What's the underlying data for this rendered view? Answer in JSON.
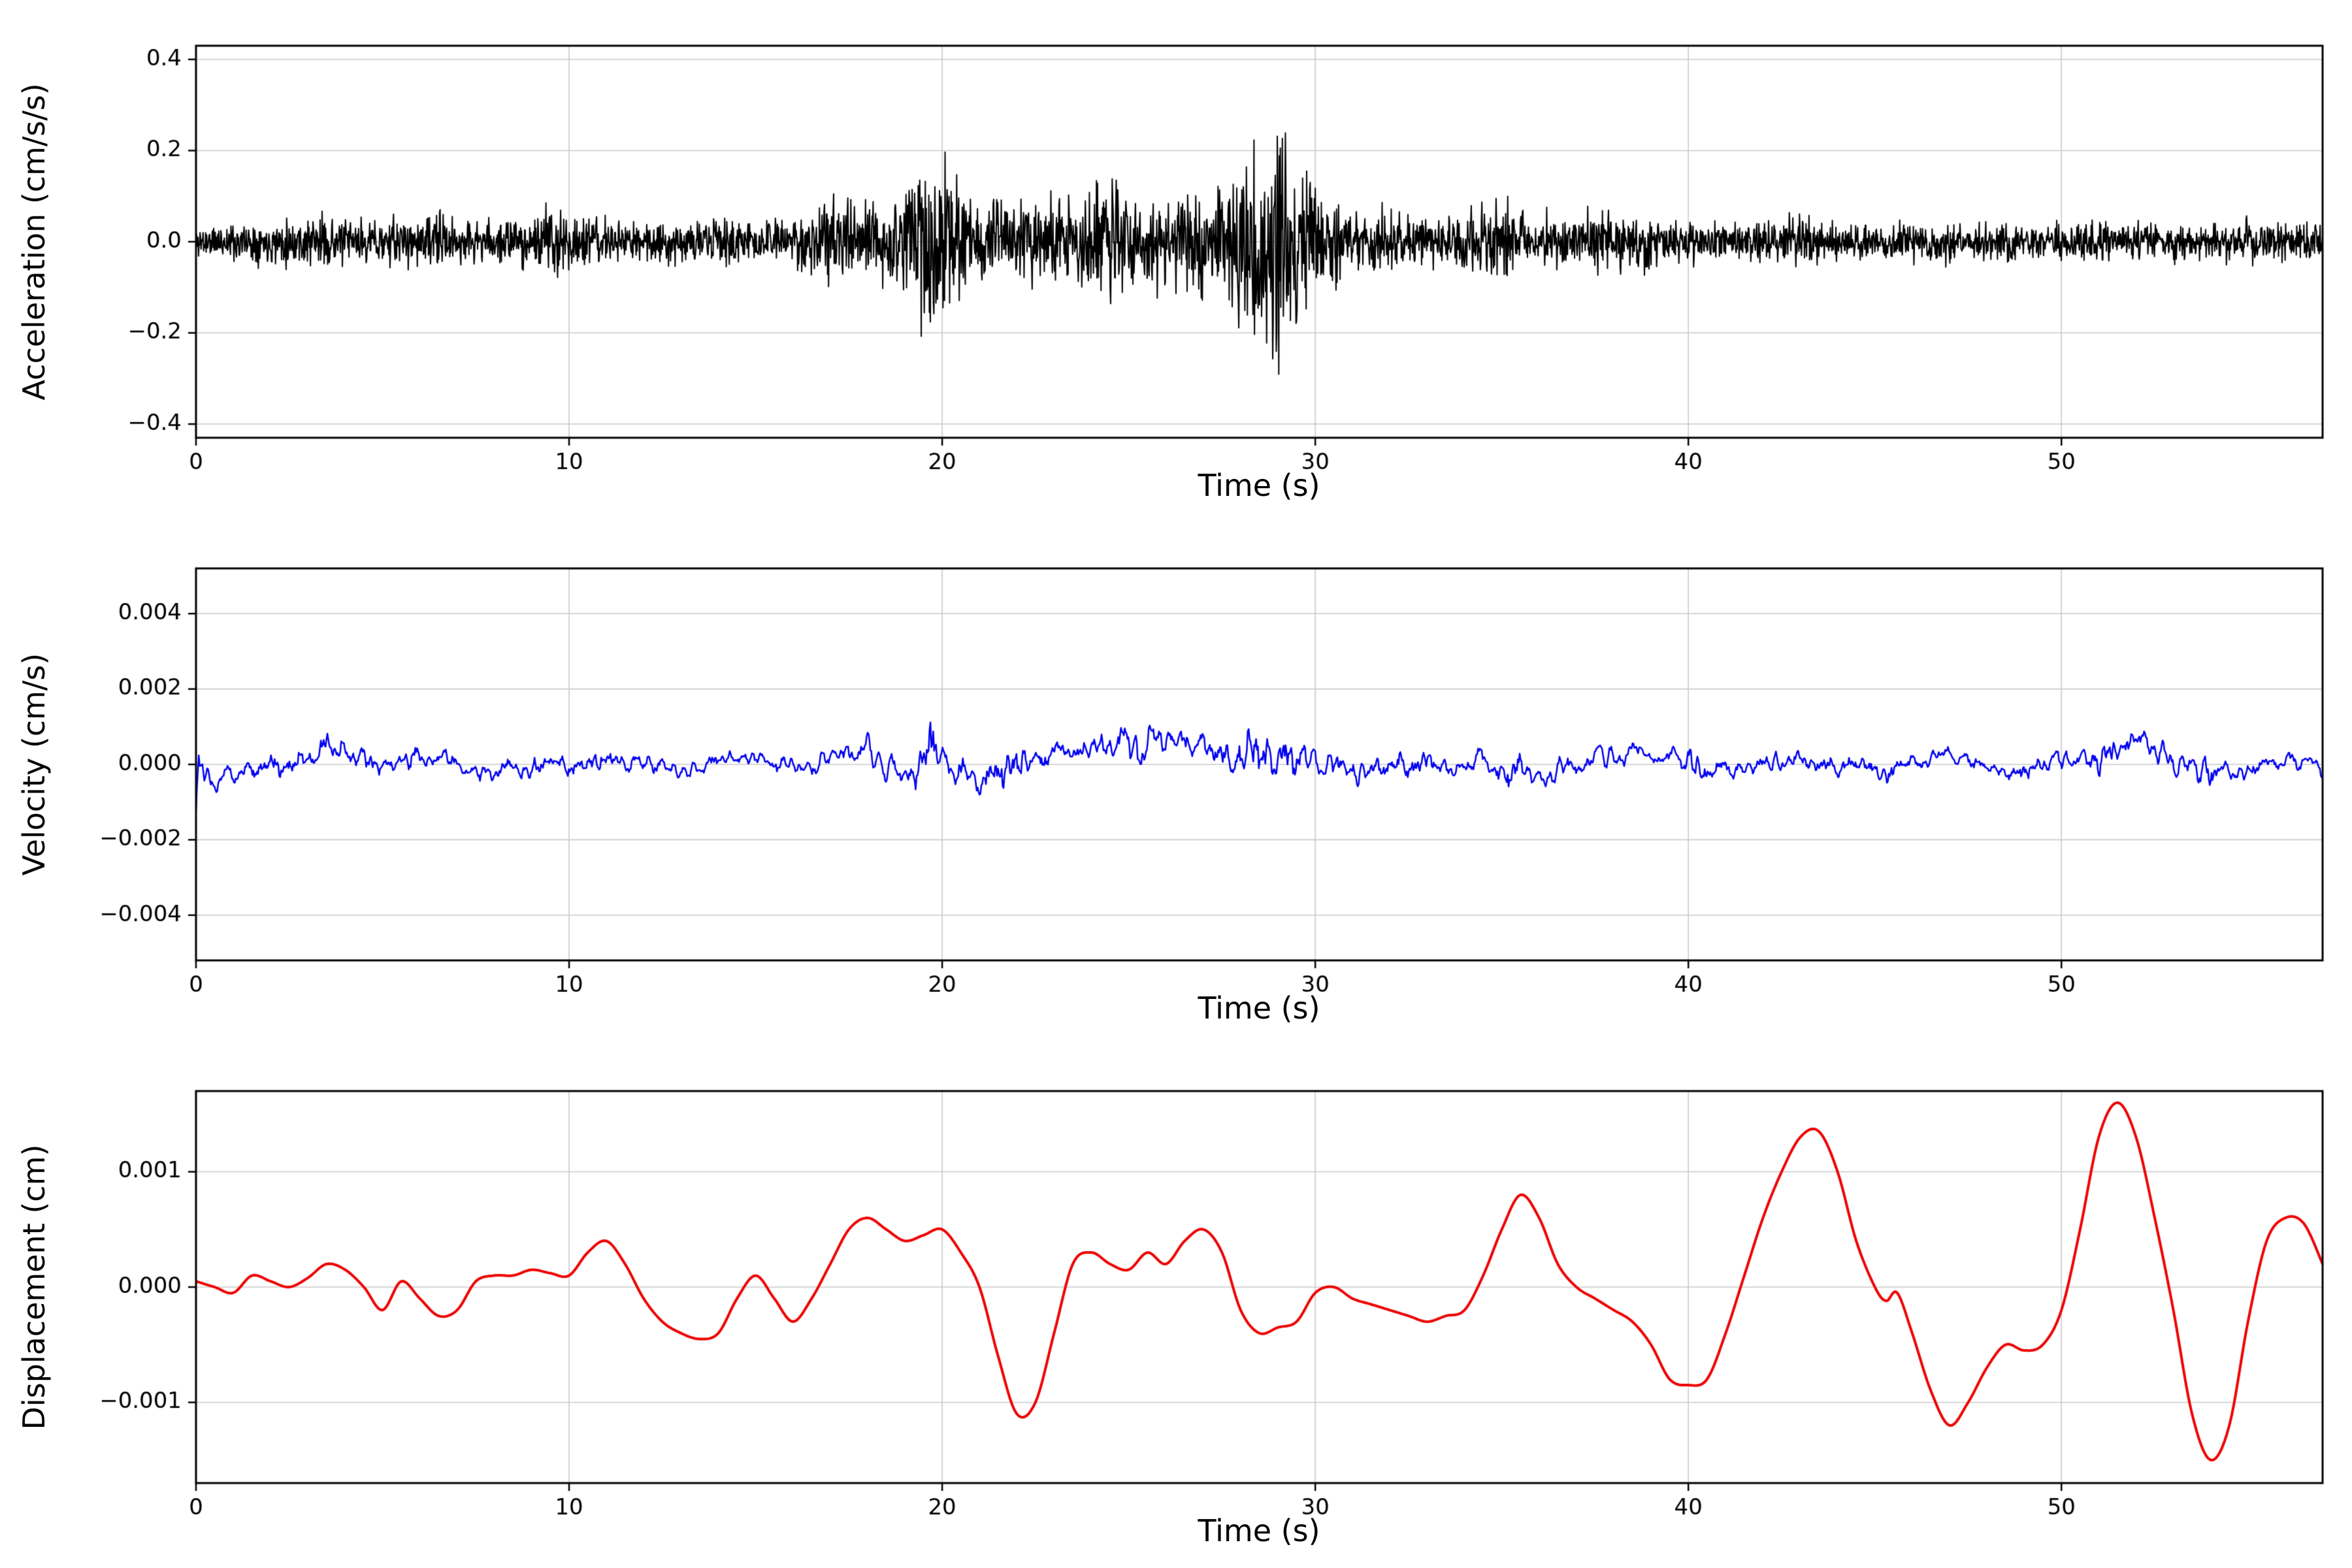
{
  "chart_data": [
    {
      "id": "acceleration",
      "type": "line",
      "title": "",
      "xlabel": "Time (s)",
      "ylabel": "Acceleration (cm/s/s)",
      "color": "#000000",
      "line_width": 2,
      "smooth_curve": false,
      "grid": true,
      "xlim": [
        0,
        57
      ],
      "ylim": [
        -0.43,
        0.43
      ],
      "xticks": [
        0,
        10,
        20,
        30,
        40,
        50
      ],
      "xtick_labels": [
        "0",
        "10",
        "20",
        "30",
        "40",
        "50"
      ],
      "yticks": [
        -0.4,
        -0.2,
        0.0,
        0.2,
        0.4
      ],
      "ytick_labels": [
        "−0.4",
        "−0.2",
        "0.0",
        "0.2",
        "0.4"
      ],
      "signal": {
        "kind": "noise",
        "seed": 11,
        "n": 4200,
        "smooth": 1,
        "slow_window": 1,
        "slow_mix": 0,
        "envelope": [
          [
            0,
            0.05
          ],
          [
            2,
            0.06
          ],
          [
            3,
            0.08
          ],
          [
            4,
            0.06
          ],
          [
            6,
            0.07
          ],
          [
            6.5,
            0.09
          ],
          [
            7.5,
            0.06
          ],
          [
            9,
            0.07
          ],
          [
            9.6,
            0.12
          ],
          [
            10.2,
            0.07
          ],
          [
            12,
            0.06
          ],
          [
            14,
            0.07
          ],
          [
            16,
            0.07
          ],
          [
            16.8,
            0.12
          ],
          [
            18,
            0.13
          ],
          [
            18.8,
            0.12
          ],
          [
            19.3,
            0.2
          ],
          [
            19.6,
            0.28
          ],
          [
            20.1,
            0.25
          ],
          [
            20.6,
            0.12
          ],
          [
            21.5,
            0.13
          ],
          [
            22.5,
            0.14
          ],
          [
            23.5,
            0.12
          ],
          [
            24.8,
            0.2
          ],
          [
            25.3,
            0.13
          ],
          [
            26.5,
            0.13
          ],
          [
            27.6,
            0.2
          ],
          [
            28.9,
            0.38
          ],
          [
            29.6,
            0.22
          ],
          [
            30.5,
            0.12
          ],
          [
            32,
            0.09
          ],
          [
            33.5,
            0.07
          ],
          [
            34.8,
            0.13
          ],
          [
            35.5,
            0.1
          ],
          [
            36.5,
            0.08
          ],
          [
            38,
            0.1
          ],
          [
            39,
            0.07
          ],
          [
            41,
            0.06
          ],
          [
            43,
            0.07
          ],
          [
            45,
            0.05
          ],
          [
            47,
            0.06
          ],
          [
            49,
            0.05
          ],
          [
            51,
            0.06
          ],
          [
            53,
            0.05
          ],
          [
            55,
            0.06
          ],
          [
            57,
            0.05
          ]
        ]
      }
    },
    {
      "id": "velocity",
      "type": "line",
      "title": "",
      "xlabel": "Time (s)",
      "ylabel": "Velocity (cm/s)",
      "color": "#0000ee",
      "line_width": 2.5,
      "smooth_curve": false,
      "grid": true,
      "xlim": [
        0,
        57
      ],
      "ylim": [
        -0.0052,
        0.0052
      ],
      "xticks": [
        0,
        10,
        20,
        30,
        40,
        50
      ],
      "xtick_labels": [
        "0",
        "10",
        "20",
        "30",
        "40",
        "50"
      ],
      "yticks": [
        -0.004,
        -0.002,
        0.0,
        0.002,
        0.004
      ],
      "ytick_labels": [
        "−0.004",
        "−0.002",
        "0.000",
        "0.002",
        "0.004"
      ],
      "signal": {
        "kind": "noise",
        "seed": 23,
        "n": 2300,
        "smooth": 5,
        "slow_window": 60,
        "slow_mix": 0.6,
        "envelope": [
          [
            0,
            0.0012
          ],
          [
            3,
            0.0018
          ],
          [
            5,
            0.0015
          ],
          [
            7,
            0.0013
          ],
          [
            10,
            0.0015
          ],
          [
            11,
            0.0018
          ],
          [
            13,
            0.0012
          ],
          [
            15,
            0.001
          ],
          [
            17,
            0.0016
          ],
          [
            19,
            0.002
          ],
          [
            19.6,
            0.0042
          ],
          [
            20.2,
            0.002
          ],
          [
            21.7,
            0.0033
          ],
          [
            22.5,
            0.0015
          ],
          [
            24,
            0.0013
          ],
          [
            25.2,
            0.0028
          ],
          [
            26,
            0.0018
          ],
          [
            27,
            0.002
          ],
          [
            28,
            0.0025
          ],
          [
            29,
            0.0047
          ],
          [
            29.6,
            0.003
          ],
          [
            30.5,
            0.002
          ],
          [
            31.5,
            0.0016
          ],
          [
            33,
            0.0022
          ],
          [
            34,
            0.0012
          ],
          [
            35.3,
            0.0027
          ],
          [
            36,
            0.0018
          ],
          [
            37,
            0.0015
          ],
          [
            38,
            0.0014
          ],
          [
            39,
            0.001
          ],
          [
            40.3,
            0.0019
          ],
          [
            41.5,
            0.0012
          ],
          [
            43,
            0.0015
          ],
          [
            44,
            0.0012
          ],
          [
            45.2,
            0.0016
          ],
          [
            46,
            0.001
          ],
          [
            47.5,
            0.0013
          ],
          [
            48.5,
            0.001
          ],
          [
            49.5,
            0.0012
          ],
          [
            50.5,
            0.002
          ],
          [
            51.2,
            0.0025
          ],
          [
            52,
            0.0018
          ],
          [
            53.5,
            0.0023
          ],
          [
            54.5,
            0.0012
          ],
          [
            55.5,
            0.0014
          ],
          [
            56.5,
            0.0012
          ],
          [
            57,
            0.001
          ]
        ]
      }
    },
    {
      "id": "displacement",
      "type": "line",
      "title": "",
      "xlabel": "Time (s)",
      "ylabel": "Displacement (cm)",
      "color": "#ee0000",
      "line_width": 4,
      "smooth_curve": true,
      "grid": true,
      "xlim": [
        0,
        57
      ],
      "ylim": [
        -0.0017,
        0.0017
      ],
      "xticks": [
        0,
        10,
        20,
        30,
        40,
        50
      ],
      "xtick_labels": [
        "0",
        "10",
        "20",
        "30",
        "40",
        "50"
      ],
      "yticks": [
        -0.001,
        0.0,
        0.001
      ],
      "ytick_labels": [
        "−0.001",
        "0.000",
        "0.001"
      ],
      "signal": {
        "kind": "points",
        "points": [
          [
            0,
            5e-05
          ],
          [
            0.5,
            0.0
          ],
          [
            1,
            -5e-05
          ],
          [
            1.5,
            0.0001
          ],
          [
            2,
            5e-05
          ],
          [
            2.5,
            0.0
          ],
          [
            3,
            8e-05
          ],
          [
            3.5,
            0.0002
          ],
          [
            4,
            0.00015
          ],
          [
            4.5,
            0.0
          ],
          [
            5,
            -0.0002
          ],
          [
            5.5,
            5e-05
          ],
          [
            6,
            -0.0001
          ],
          [
            6.5,
            -0.00025
          ],
          [
            7,
            -0.0002
          ],
          [
            7.5,
            5e-05
          ],
          [
            8,
            0.0001
          ],
          [
            8.5,
            0.0001
          ],
          [
            9,
            0.00015
          ],
          [
            9.5,
            0.00012
          ],
          [
            10,
            0.0001
          ],
          [
            10.5,
            0.0003
          ],
          [
            11,
            0.0004
          ],
          [
            11.5,
            0.0002
          ],
          [
            12,
            -0.0001
          ],
          [
            12.5,
            -0.0003
          ],
          [
            13,
            -0.0004
          ],
          [
            13.5,
            -0.00045
          ],
          [
            14,
            -0.0004
          ],
          [
            14.5,
            -0.0001
          ],
          [
            15,
            0.0001
          ],
          [
            15.5,
            -0.0001
          ],
          [
            16,
            -0.0003
          ],
          [
            16.5,
            -0.0001
          ],
          [
            17,
            0.0002
          ],
          [
            17.5,
            0.0005
          ],
          [
            18,
            0.0006
          ],
          [
            18.5,
            0.0005
          ],
          [
            19,
            0.0004
          ],
          [
            19.5,
            0.00045
          ],
          [
            20,
            0.0005
          ],
          [
            20.5,
            0.0003
          ],
          [
            21,
            0.0
          ],
          [
            21.5,
            -0.0006
          ],
          [
            22,
            -0.0011
          ],
          [
            22.5,
            -0.001
          ],
          [
            23,
            -0.0004
          ],
          [
            23.5,
            0.0002
          ],
          [
            24,
            0.0003
          ],
          [
            24.5,
            0.0002
          ],
          [
            25,
            0.00015
          ],
          [
            25.5,
            0.0003
          ],
          [
            26,
            0.0002
          ],
          [
            26.5,
            0.0004
          ],
          [
            27,
            0.0005
          ],
          [
            27.5,
            0.0003
          ],
          [
            28,
            -0.0002
          ],
          [
            28.5,
            -0.0004
          ],
          [
            29,
            -0.00035
          ],
          [
            29.5,
            -0.0003
          ],
          [
            30,
            -5e-05
          ],
          [
            30.5,
            0.0
          ],
          [
            31,
            -0.0001
          ],
          [
            31.5,
            -0.00015
          ],
          [
            32,
            -0.0002
          ],
          [
            32.5,
            -0.00025
          ],
          [
            33,
            -0.0003
          ],
          [
            33.5,
            -0.00025
          ],
          [
            34,
            -0.0002
          ],
          [
            34.5,
            0.0001
          ],
          [
            35,
            0.0005
          ],
          [
            35.5,
            0.0008
          ],
          [
            36,
            0.0006
          ],
          [
            36.5,
            0.0002
          ],
          [
            37,
            0.0
          ],
          [
            37.5,
            -0.0001
          ],
          [
            38,
            -0.0002
          ],
          [
            38.5,
            -0.0003
          ],
          [
            39,
            -0.0005
          ],
          [
            39.5,
            -0.0008
          ],
          [
            40,
            -0.00085
          ],
          [
            40.5,
            -0.0008
          ],
          [
            41,
            -0.0004
          ],
          [
            41.5,
            0.0001
          ],
          [
            42,
            0.0006
          ],
          [
            42.5,
            0.001
          ],
          [
            43,
            0.0013
          ],
          [
            43.5,
            0.00135
          ],
          [
            44,
            0.001
          ],
          [
            44.5,
            0.0004
          ],
          [
            45,
            0.0
          ],
          [
            45.3,
            -0.00012
          ],
          [
            45.6,
            -5e-05
          ],
          [
            46,
            -0.0004
          ],
          [
            46.5,
            -0.0009
          ],
          [
            47,
            -0.0012
          ],
          [
            47.5,
            -0.001
          ],
          [
            48,
            -0.0007
          ],
          [
            48.5,
            -0.0005
          ],
          [
            49,
            -0.00055
          ],
          [
            49.5,
            -0.0005
          ],
          [
            50,
            -0.0002
          ],
          [
            50.5,
            0.0005
          ],
          [
            51,
            0.0013
          ],
          [
            51.5,
            0.0016
          ],
          [
            52,
            0.0013
          ],
          [
            52.5,
            0.0006
          ],
          [
            53,
            -0.0002
          ],
          [
            53.5,
            -0.0011
          ],
          [
            54,
            -0.0015
          ],
          [
            54.5,
            -0.0012
          ],
          [
            55,
            -0.0003
          ],
          [
            55.5,
            0.0004
          ],
          [
            56,
            0.0006
          ],
          [
            56.5,
            0.00055
          ],
          [
            57,
            0.0002
          ]
        ]
      }
    }
  ]
}
